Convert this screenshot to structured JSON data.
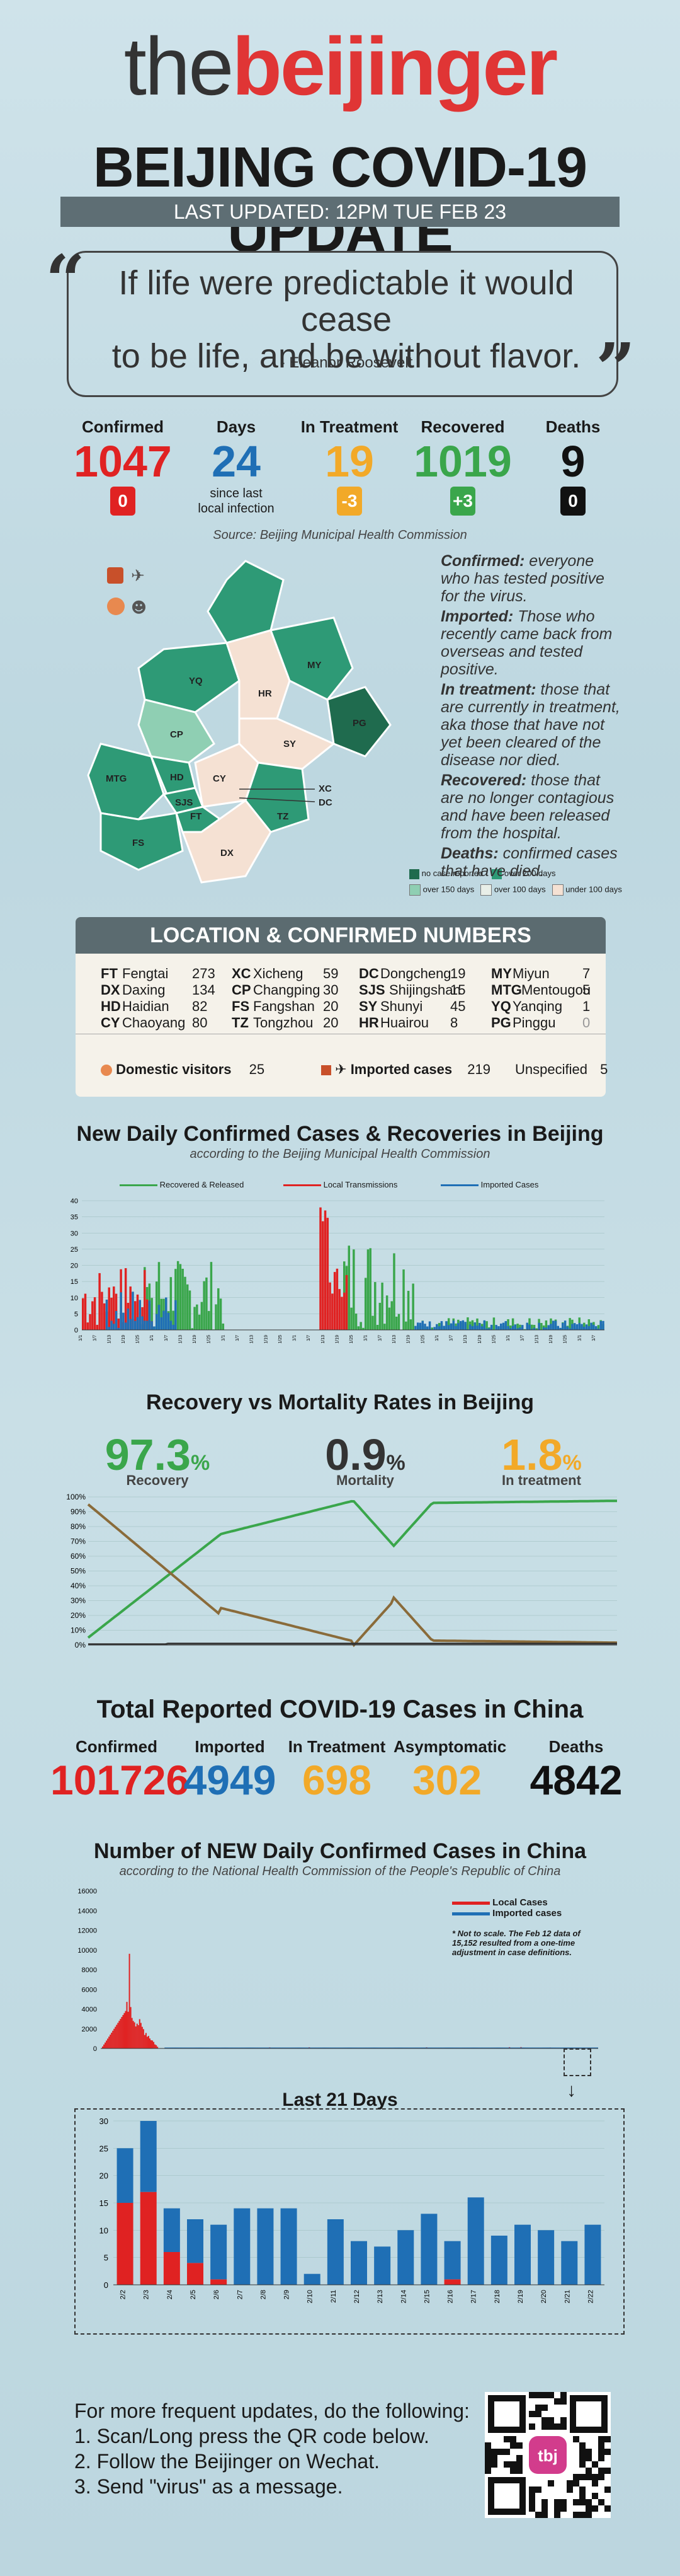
{
  "logo": {
    "the": "the",
    "beijinger": "beijinger"
  },
  "title": "BEIJING COVID-19 UPDATE",
  "updated": "LAST UPDATED: 12PM TUE FEB 23",
  "quote": {
    "line1": "If life were predictable it would cease",
    "line2": "to be life, and be without flavor.",
    "author": "- Eleanor Roosevelt"
  },
  "stats": [
    {
      "label": "Confirmed",
      "value": "1047",
      "badge": "0",
      "color": "#e02222",
      "badge_color": "#e02222"
    },
    {
      "label": "Days",
      "value": "24",
      "sub1": "since last",
      "sub2": "local infection",
      "color": "#1f6fb5"
    },
    {
      "label": "In Treatment",
      "value": "19",
      "badge": "-3",
      "color": "#f2a928",
      "badge_color": "#f2a928"
    },
    {
      "label": "Recovered",
      "value": "1019",
      "badge": "+3",
      "color": "#3aa64b",
      "badge_color": "#3aa64b"
    },
    {
      "label": "Deaths",
      "value": "9",
      "badge": "0",
      "color": "#111111",
      "badge_color": "#111111"
    }
  ],
  "source": "Source: Beijing Municipal Health Commission",
  "definitions": [
    {
      "term": "Confirmed:",
      "text": "everyone who has tested positive for the virus."
    },
    {
      "term": "Imported:",
      "text": "Those who recently came back from overseas and tested positive."
    },
    {
      "term": "In treatment:",
      "text": "those that are currently in treatment, aka those that have not yet been cleared of the disease nor died."
    },
    {
      "term": "Recovered:",
      "text": "those that are no longer contagious and have been released from the hospital."
    },
    {
      "term": "Deaths:",
      "text": "confirmed cases that have died."
    }
  ],
  "map": {
    "districts": [
      "YQ",
      "MY",
      "HR",
      "CP",
      "PG",
      "SY",
      "MTG",
      "SJS",
      "HD",
      "CY",
      "XC",
      "DC",
      "FT",
      "TZ",
      "FS",
      "DX"
    ],
    "legend": [
      "no case reported",
      "over 200 days",
      "over 150 days",
      "over 100 days",
      "under 100 days"
    ],
    "legend_colors": [
      "#1f6b4e",
      "#2e9a76",
      "#8fcfb3",
      "#e9efe8",
      "#f5e1d3"
    ]
  },
  "location": {
    "header": "LOCATION & CONFIRMED NUMBERS",
    "rows": [
      [
        {
          "code": "FT",
          "name": "Fengtai",
          "n": "273"
        },
        {
          "code": "XC",
          "name": "Xicheng",
          "n": "59"
        },
        {
          "code": "DC",
          "name": "Dongcheng",
          "n": "19"
        },
        {
          "code": "MY",
          "name": "Miyun",
          "n": "7"
        }
      ],
      [
        {
          "code": "DX",
          "name": "Daxing",
          "n": "134"
        },
        {
          "code": "CP",
          "name": "Changping",
          "n": "30"
        },
        {
          "code": "SJS",
          "name": "Shijingshan",
          "n": "15"
        },
        {
          "code": "MTG",
          "name": "Mentougou",
          "n": "5"
        }
      ],
      [
        {
          "code": "HD",
          "name": "Haidian",
          "n": "82"
        },
        {
          "code": "FS",
          "name": "Fangshan",
          "n": "20"
        },
        {
          "code": "SY",
          "name": "Shunyi",
          "n": "45"
        },
        {
          "code": "YQ",
          "name": "Yanqing",
          "n": "1"
        }
      ],
      [
        {
          "code": "CY",
          "name": "Chaoyang",
          "n": "80"
        },
        {
          "code": "TZ",
          "name": "Tongzhou",
          "n": "20"
        },
        {
          "code": "HR",
          "name": "Huairou",
          "n": "8"
        },
        {
          "code": "PG",
          "name": "Pinggu",
          "n": "0"
        }
      ]
    ],
    "domestic_label": "Domestic visitors",
    "domestic": "25",
    "imported_label": "Imported cases",
    "imported": "219",
    "unspecified_label": "Unspecified",
    "unspecified": "5"
  },
  "daily": {
    "title": "New Daily Confirmed Cases & Recoveries in Beijing",
    "sub": "according to the Beijing Municipal Health Commission",
    "legend": [
      "Recovered & Released",
      "Local Transmissions",
      "Imported Cases"
    ]
  },
  "rates": {
    "title": "Recovery vs Mortality Rates in Beijing",
    "recovery": "97.3",
    "recovery_label": "Recovery",
    "mortality": "0.9",
    "mortality_label": "Mortality",
    "treatment": "1.8",
    "treatment_label": "In treatment",
    "pct": "%"
  },
  "china": {
    "title": "Total Reported COVID-19 Cases in China",
    "items": [
      {
        "label": "Confirmed",
        "value": "101726",
        "color": "#e02222"
      },
      {
        "label": "Imported",
        "value": "4949",
        "color": "#1f6fb5"
      },
      {
        "label": "In Treatment",
        "value": "698",
        "color": "#f2a928"
      },
      {
        "label": "Asymptomatic",
        "value": "302",
        "color": "#f2a928"
      },
      {
        "label": "Deaths",
        "value": "4842",
        "color": "#111111"
      }
    ]
  },
  "china_daily": {
    "title": "Number of NEW Daily Confirmed Cases in China",
    "sub": "according to the National Health Commission of the People's Republic of China",
    "legend": [
      "Local Cases",
      "Imported cases"
    ],
    "note": "* Not to scale. The Feb 12 data of 15,152 resulted from a one-time adjustment in case definitions."
  },
  "last21_title": "Last 21 Days",
  "chart_data": [
    {
      "type": "bar",
      "title": "Last 21 Days",
      "ylim": [
        0,
        30
      ],
      "categories": [
        "2/2",
        "2/3",
        "2/4",
        "2/5",
        "2/6",
        "2/7",
        "2/8",
        "2/9",
        "2/10",
        "2/11",
        "2/12",
        "2/13",
        "2/14",
        "2/15",
        "2/16",
        "2/17",
        "2/18",
        "2/19",
        "2/20",
        "2/21",
        "2/22"
      ],
      "series": [
        {
          "name": "Local Cases",
          "color": "#e02222",
          "values": [
            15,
            17,
            6,
            4,
            1,
            0,
            0,
            0,
            0,
            0,
            0,
            0,
            0,
            0,
            1,
            0,
            0,
            0,
            0,
            0,
            0
          ]
        },
        {
          "name": "Imported cases",
          "color": "#1f6fb5",
          "values": [
            10,
            13,
            8,
            8,
            10,
            14,
            14,
            14,
            2,
            12,
            8,
            7,
            10,
            13,
            7,
            16,
            9,
            11,
            10,
            8,
            11
          ]
        }
      ]
    },
    {
      "type": "line",
      "title": "Recovery vs Mortality Rates in Beijing",
      "ylim": [
        0,
        100
      ],
      "series": [
        {
          "name": "Recovery",
          "color": "#3aa64b"
        },
        {
          "name": "Mortality",
          "color": "#333333"
        },
        {
          "name": "In treatment",
          "color": "#f2a928"
        }
      ]
    }
  ],
  "footer": {
    "line1": "For more frequent updates, do the following:",
    "line2": "1. Scan/Long press the QR code below.",
    "line3": "2. Follow the Beijinger on Wechat.",
    "line4": "3. Send \"virus\" as a message.",
    "qr_label": "tbj"
  }
}
